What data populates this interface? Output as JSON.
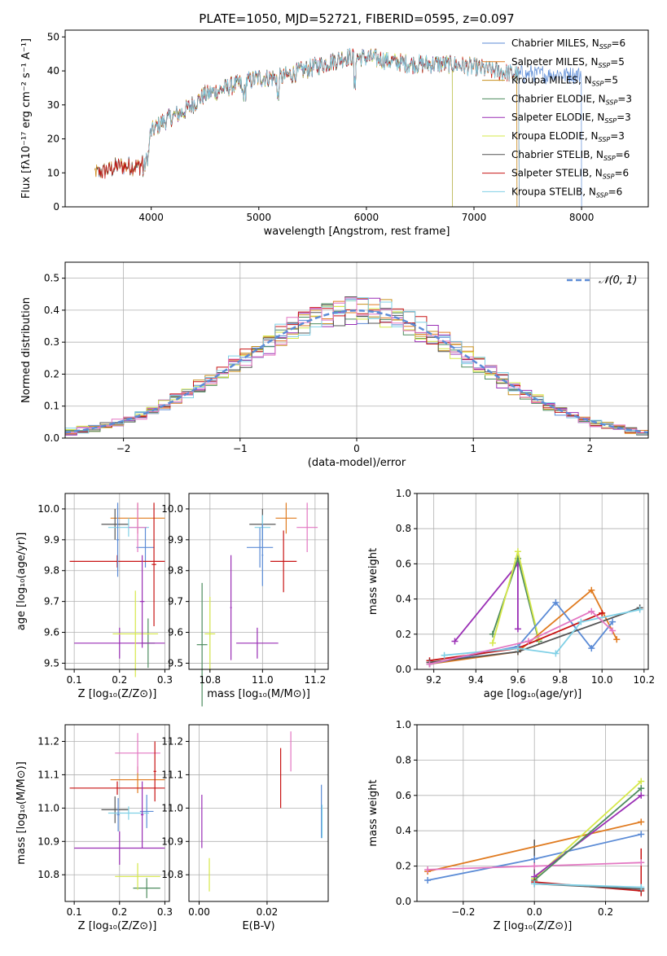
{
  "colors": {
    "Chabrier MILES": "#5b8bd6",
    "Salpeter MILES": "#e07b20",
    "Kroupa MILES": "#c8901e",
    "Chabrier ELODIE": "#4d8c5e",
    "Salpeter ELODIE": "#9a2fb5",
    "Kroupa ELODIE": "#d6e84a",
    "Chabrier STELIB": "#555555",
    "Salpeter STELIB": "#c81414",
    "Kroupa STELIB": "#7fd0e6",
    "pink": "#e377c2",
    "normal": "#5b8bd6"
  },
  "chart_data": [
    {
      "id": "spectrum",
      "type": "line",
      "title": "PLATE=1050, MJD=52721, FIBERID=0595, z=0.097",
      "xlabel": "wavelength [Angstrom, rest frame]",
      "ylabel": "Flux [fλ10⁻¹⁷ erg cm⁻² s⁻¹ A⁻¹]",
      "xlim": [
        3200,
        8620
      ],
      "ylim": [
        0,
        52
      ],
      "xticks": [
        4000,
        5000,
        6000,
        7000,
        8000
      ],
      "yticks": [
        0,
        10,
        20,
        30,
        40,
        50
      ],
      "legend": "right",
      "series_names": [
        "Chabrier MILES, N_SSP=6",
        "Salpeter MILES, N_SSP=5",
        "Kroupa MILES, N_SSP=5",
        "Chabrier ELODIE, N_SSP=3",
        "Salpeter ELODIE, N_SSP=3",
        "Kroupa ELODIE, N_SSP=3",
        "Chabrier STELIB, N_SSP=6",
        "Salpeter STELIB, N_SSP=6",
        "Kroupa STELIB, N_SSP=6"
      ],
      "continuum": {
        "x": [
          3500,
          3700,
          3900,
          4000,
          4100,
          4300,
          4500,
          4800,
          5000,
          5200,
          5400,
          5600,
          5800,
          6000,
          6200,
          6400,
          6600,
          6800,
          7000,
          7200,
          7400
        ],
        "y": [
          10,
          12,
          12,
          22,
          25,
          28,
          33,
          36,
          38,
          38,
          40,
          42,
          44,
          44,
          43,
          42,
          42,
          42,
          41,
          40,
          39
        ]
      },
      "coverage": [
        [
          3500,
          8000
        ],
        [
          3480,
          7400
        ],
        [
          3470,
          7400
        ],
        [
          3910,
          6800
        ],
        [
          3910,
          6800
        ],
        [
          3910,
          6800
        ],
        [
          3490,
          7420
        ],
        [
          3500,
          7420
        ],
        [
          3920,
          7420
        ]
      ]
    },
    {
      "id": "residuals",
      "type": "line",
      "xlabel": "(data-model)/error",
      "ylabel": "Normed distribution",
      "xlim": [
        -2.5,
        2.5
      ],
      "ylim": [
        0,
        0.55
      ],
      "xticks": [
        -2,
        -1,
        0,
        1,
        2
      ],
      "yticks": [
        0.0,
        0.1,
        0.2,
        0.3,
        0.4,
        0.5
      ],
      "legend_label": "𝒩(0, 1)",
      "normal": {
        "mu": 0,
        "sigma": 1
      }
    },
    {
      "id": "z-age",
      "type": "scatter",
      "xlabel": "Z [log₁₀(Z/Z⊙)]",
      "ylabel": "age  [log₁₀(age/yr)]",
      "xlim": [
        0.08,
        0.31
      ],
      "ylim": [
        9.48,
        10.05
      ],
      "xticks": [
        0.1,
        0.2,
        0.3
      ],
      "yticks": [
        9.5,
        9.6,
        9.7,
        9.8,
        9.9,
        10.0
      ],
      "points": [
        {
          "c": "Chabrier MILES",
          "x": 0.257,
          "y": 9.875,
          "xe": 0.02,
          "ye": 0.065
        },
        {
          "c": "Salpeter MILES",
          "x": 0.24,
          "y": 9.97,
          "xe": 0.06,
          "ye": 0.05
        },
        {
          "c": "Chabrier ELODIE",
          "x": 0.263,
          "y": 9.565,
          "xe": 0.015,
          "ye": 0.08
        },
        {
          "c": "Salpeter ELODIE",
          "x": 0.2,
          "y": 9.565,
          "xe": 0.1,
          "ye": 0.05
        },
        {
          "c": "Kroupa ELODIE",
          "x": 0.235,
          "y": 9.595,
          "xe": 0.05,
          "ye": 0.14
        },
        {
          "c": "Chabrier STELIB",
          "x": 0.19,
          "y": 9.95,
          "xe": 0.03,
          "ye": 0.05
        },
        {
          "c": "Salpeter STELIB",
          "x": 0.195,
          "y": 9.83,
          "xe": 0.105,
          "ye": 0.02
        },
        {
          "c": "Kroupa STELIB",
          "x": 0.22,
          "y": 9.94,
          "xe": 0.045,
          "ye": 0.03
        },
        {
          "c": "pink",
          "x": 0.24,
          "y": 9.94,
          "xe": 0.02,
          "ye": 0.08
        },
        {
          "c": "Salpeter STELIB",
          "x": 0.276,
          "y": 9.82,
          "xe": 0.005,
          "ye": 0.2
        },
        {
          "c": "Salpeter ELODIE",
          "x": 0.25,
          "y": 9.7,
          "xe": 0.005,
          "ye": 0.15
        },
        {
          "c": "Chabrier MILES",
          "x": 0.196,
          "y": 9.9,
          "xe": 0.003,
          "ye": 0.12
        }
      ]
    },
    {
      "id": "mass-age",
      "type": "scatter",
      "xlabel": "mass [log₁₀(M/M⊙)]",
      "xlim": [
        10.72,
        11.25
      ],
      "ylim": [
        9.48,
        10.05
      ],
      "xticks": [
        10.8,
        11.0,
        11.2
      ],
      "yticks": [
        9.5,
        9.6,
        9.7,
        9.8,
        9.9,
        10.0
      ],
      "points": [
        {
          "c": "Chabrier MILES",
          "x": 10.99,
          "y": 9.875,
          "xe": 0.05,
          "ye": 0.065
        },
        {
          "c": "Salpeter MILES",
          "x": 11.09,
          "y": 9.97,
          "xe": 0.04,
          "ye": 0.05
        },
        {
          "c": "Chabrier ELODIE",
          "x": 10.77,
          "y": 9.56,
          "xe": 0.02,
          "ye": 0.2
        },
        {
          "c": "Salpeter ELODIE",
          "x": 10.98,
          "y": 9.565,
          "xe": 0.08,
          "ye": 0.05
        },
        {
          "c": "Salpeter ELODIE",
          "x": 10.88,
          "y": 9.68,
          "xe": 0.003,
          "ye": 0.17
        },
        {
          "c": "Kroupa ELODIE",
          "x": 10.8,
          "y": 9.595,
          "xe": 0.02,
          "ye": 0.12
        },
        {
          "c": "Chabrier STELIB",
          "x": 11.0,
          "y": 9.95,
          "xe": 0.05,
          "ye": 0.05
        },
        {
          "c": "Salpeter STELIB",
          "x": 11.08,
          "y": 9.83,
          "xe": 0.05,
          "ye": 0.1
        },
        {
          "c": "Kroupa STELIB",
          "x": 11.0,
          "y": 9.94,
          "xe": 0.03,
          "ye": 0.04
        },
        {
          "c": "pink",
          "x": 11.17,
          "y": 9.94,
          "xe": 0.04,
          "ye": 0.08
        },
        {
          "c": "Chabrier MILES",
          "x": 11.0,
          "y": 9.85,
          "xe": 0.003,
          "ye": 0.1
        }
      ]
    },
    {
      "id": "age-weight",
      "type": "line",
      "xlabel": "age  [log₁₀(age/yr)]",
      "ylabel": "mass weight",
      "xlim": [
        9.12,
        10.22
      ],
      "ylim": [
        0,
        1
      ],
      "xticks": [
        9.2,
        9.4,
        9.6,
        9.8,
        10.0,
        10.2
      ],
      "yticks": [
        0.0,
        0.2,
        0.4,
        0.6,
        0.8,
        1.0
      ],
      "series": [
        {
          "c": "Salpeter ELODIE",
          "x": [
            9.3,
            9.6,
            9.6
          ],
          "y": [
            0.16,
            0.6,
            0.23
          ]
        },
        {
          "c": "Chabrier ELODIE",
          "x": [
            9.48,
            9.6,
            9.7
          ],
          "y": [
            0.2,
            0.63,
            0.16
          ]
        },
        {
          "c": "Kroupa ELODIE",
          "x": [
            9.48,
            9.6,
            9.7
          ],
          "y": [
            0.15,
            0.67,
            0.17
          ]
        },
        {
          "c": "Salpeter MILES",
          "x": [
            9.18,
            9.6,
            9.95,
            10.07
          ],
          "y": [
            0.03,
            0.1,
            0.45,
            0.17
          ]
        },
        {
          "c": "Chabrier MILES",
          "x": [
            9.18,
            9.6,
            9.78,
            9.95,
            10.05
          ],
          "y": [
            0.03,
            0.13,
            0.38,
            0.12,
            0.27
          ]
        },
        {
          "c": "Salpeter STELIB",
          "x": [
            9.18,
            9.6,
            10.0
          ],
          "y": [
            0.05,
            0.12,
            0.32
          ]
        },
        {
          "c": "Chabrier STELIB",
          "x": [
            9.18,
            9.6,
            10.18
          ],
          "y": [
            0.04,
            0.1,
            0.35
          ]
        },
        {
          "c": "Kroupa STELIB",
          "x": [
            9.25,
            9.6,
            9.78,
            9.9,
            10.18
          ],
          "y": [
            0.08,
            0.12,
            0.09,
            0.27,
            0.34
          ]
        },
        {
          "c": "pink",
          "x": [
            9.18,
            9.65,
            9.95,
            10.05
          ],
          "y": [
            0.03,
            0.16,
            0.33,
            0.22
          ]
        }
      ]
    },
    {
      "id": "z-mass",
      "type": "scatter",
      "xlabel": "Z [log₁₀(Z/Z⊙)]",
      "ylabel": "mass [log₁₀(M/M⊙)]",
      "xlim": [
        0.08,
        0.31
      ],
      "ylim": [
        10.72,
        11.25
      ],
      "xticks": [
        0.1,
        0.2,
        0.3
      ],
      "yticks": [
        10.8,
        10.9,
        11.0,
        11.1,
        11.2
      ],
      "points": [
        {
          "c": "Chabrier MILES",
          "x": 0.26,
          "y": 10.99,
          "xe": 0.015,
          "ye": 0.05
        },
        {
          "c": "Salpeter MILES",
          "x": 0.24,
          "y": 11.085,
          "xe": 0.06,
          "ye": 0.04
        },
        {
          "c": "Chabrier ELODIE",
          "x": 0.26,
          "y": 10.76,
          "xe": 0.03,
          "ye": 0.03
        },
        {
          "c": "Salpeter ELODIE",
          "x": 0.2,
          "y": 10.88,
          "xe": 0.1,
          "ye": 0.05
        },
        {
          "c": "Kroupa ELODIE",
          "x": 0.24,
          "y": 10.795,
          "xe": 0.05,
          "ye": 0.04
        },
        {
          "c": "Chabrier STELIB",
          "x": 0.19,
          "y": 10.995,
          "xe": 0.03,
          "ye": 0.04
        },
        {
          "c": "Salpeter STELIB",
          "x": 0.195,
          "y": 11.06,
          "xe": 0.105,
          "ye": 0.02
        },
        {
          "c": "Kroupa STELIB",
          "x": 0.22,
          "y": 10.985,
          "xe": 0.045,
          "ye": 0.02
        },
        {
          "c": "pink",
          "x": 0.24,
          "y": 11.165,
          "xe": 0.05,
          "ye": 0.06
        },
        {
          "c": "Salpeter STELIB",
          "x": 0.278,
          "y": 11.11,
          "xe": 0.003,
          "ye": 0.09
        },
        {
          "c": "Salpeter ELODIE",
          "x": 0.25,
          "y": 10.98,
          "xe": 0.003,
          "ye": 0.1
        },
        {
          "c": "Chabrier MILES",
          "x": 0.197,
          "y": 10.98,
          "xe": 0.003,
          "ye": 0.05
        }
      ]
    },
    {
      "id": "ebv-mass",
      "type": "scatter",
      "xlabel": "E(B-V)",
      "xlim": [
        -0.003,
        0.038
      ],
      "ylim": [
        10.72,
        11.25
      ],
      "xticks": [
        0.0,
        0.02
      ],
      "yticks": [
        10.8,
        10.9,
        11.0,
        11.1,
        11.2
      ],
      "points": [
        {
          "c": "Salpeter ELODIE",
          "x": 0.0008,
          "y": 10.96,
          "xe": 0,
          "ye": 0.08
        },
        {
          "c": "Kroupa ELODIE",
          "x": 0.003,
          "y": 10.8,
          "xe": 0,
          "ye": 0.05
        },
        {
          "c": "Salpeter STELIB",
          "x": 0.024,
          "y": 11.09,
          "xe": 0,
          "ye": 0.09
        },
        {
          "c": "pink",
          "x": 0.027,
          "y": 11.17,
          "xe": 0,
          "ye": 0.06
        },
        {
          "c": "Chabrier MILES",
          "x": 0.036,
          "y": 10.99,
          "xe": 0,
          "ye": 0.08
        },
        {
          "c": "Kroupa STELIB",
          "x": 0.0362,
          "y": 10.96,
          "xe": 0,
          "ye": 0.05
        }
      ]
    },
    {
      "id": "z-weight",
      "type": "line",
      "xlabel": "Z [log₁₀(Z/Z⊙)]",
      "ylabel": "mass weight",
      "xlim": [
        -0.33,
        0.32
      ],
      "ylim": [
        0,
        1
      ],
      "xticks": [
        -0.2,
        0.0,
        0.2
      ],
      "yticks": [
        0.0,
        0.2,
        0.4,
        0.6,
        0.8,
        1.0
      ],
      "series": [
        {
          "c": "Chabrier MILES",
          "x": [
            -0.3,
            0.0,
            0.3
          ],
          "y": [
            0.12,
            0.24,
            0.38
          ]
        },
        {
          "c": "Salpeter MILES",
          "x": [
            -0.3,
            0.3
          ],
          "y": [
            0.17,
            0.45
          ]
        },
        {
          "c": "pink",
          "x": [
            -0.3,
            0.0,
            0.3
          ],
          "y": [
            0.18,
            0.2,
            0.22
          ]
        },
        {
          "c": "Kroupa ELODIE",
          "x": [
            0.0,
            0.3
          ],
          "y": [
            0.13,
            0.68
          ]
        },
        {
          "c": "Salpeter ELODIE",
          "x": [
            0.0,
            0.3
          ],
          "y": [
            0.14,
            0.6
          ]
        },
        {
          "c": "Chabrier ELODIE",
          "x": [
            0.0,
            0.3
          ],
          "y": [
            0.12,
            0.64
          ]
        },
        {
          "c": "Salpeter STELIB",
          "x": [
            0.0,
            0.3
          ],
          "y": [
            0.11,
            0.06
          ]
        },
        {
          "c": "Chabrier STELIB",
          "x": [
            0.0,
            0.3
          ],
          "y": [
            0.1,
            0.07
          ]
        },
        {
          "c": "Kroupa STELIB",
          "x": [
            0.0,
            0.3
          ],
          "y": [
            0.1,
            0.08
          ]
        }
      ],
      "verticals": [
        {
          "c": "Chabrier STELIB",
          "x": 0.0,
          "y": [
            0.1,
            0.35
          ]
        },
        {
          "c": "Kroupa STELIB",
          "x": 0.3,
          "y": [
            0.05,
            0.26
          ]
        },
        {
          "c": "Salpeter STELIB",
          "x": 0.3,
          "y": [
            0.03,
            0.3
          ]
        }
      ]
    }
  ]
}
